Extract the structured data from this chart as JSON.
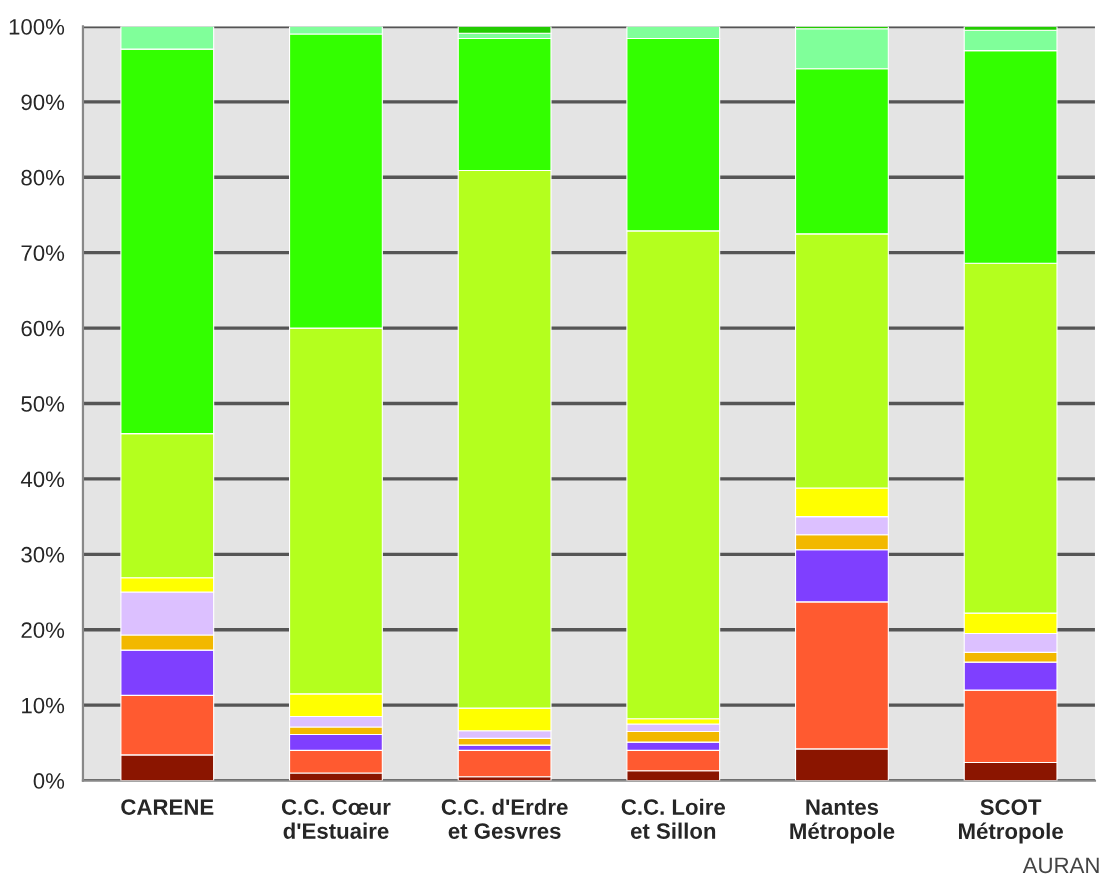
{
  "chart_data": {
    "type": "bar",
    "stacked": true,
    "categories": [
      "CARENE",
      "C.C. Cœur\nd'Estuaire",
      "C.C. d'Erdre\net Gesvres",
      "C.C. Loire\net Sillon",
      "Nantes\nMétropole",
      "SCOT\nMétropole"
    ],
    "series": [
      {
        "color": "#8b1500",
        "values": [
          3.4,
          1.0,
          0.5,
          1.3,
          4.2,
          2.4
        ]
      },
      {
        "color": "#ff5a30",
        "values": [
          7.9,
          3.0,
          3.5,
          2.7,
          19.5,
          9.6
        ]
      },
      {
        "color": "#7f3fff",
        "values": [
          6.0,
          2.1,
          0.7,
          1.1,
          6.9,
          3.7
        ]
      },
      {
        "color": "#f2b800",
        "values": [
          2.0,
          1.0,
          0.9,
          1.4,
          2.0,
          1.3
        ]
      },
      {
        "color": "#dcc0ff",
        "values": [
          5.7,
          1.4,
          1.0,
          1.0,
          2.4,
          2.5
        ]
      },
      {
        "color": "#ffff00",
        "values": [
          1.9,
          3.0,
          3.0,
          0.7,
          3.8,
          2.7
        ]
      },
      {
        "color": "#b4ff1e",
        "values": [
          19.1,
          48.5,
          71.3,
          64.7,
          33.7,
          46.4
        ]
      },
      {
        "color": "#33ff00",
        "values": [
          51.0,
          39.0,
          17.5,
          25.5,
          21.9,
          28.2
        ]
      },
      {
        "color": "#80ff9a",
        "values": [
          3.0,
          1.0,
          0.7,
          1.6,
          5.3,
          2.7
        ]
      },
      {
        "color": "#22cc00",
        "values": [
          null,
          null,
          0.9,
          null,
          0.3,
          0.5
        ]
      }
    ],
    "ylim": [
      0,
      100
    ],
    "yticks": [
      {
        "value": 0,
        "label": "0%"
      },
      {
        "value": 10,
        "label": "10%"
      },
      {
        "value": 20,
        "label": "20%"
      },
      {
        "value": 30,
        "label": "30%"
      },
      {
        "value": 40,
        "label": "40%"
      },
      {
        "value": 50,
        "label": "50%"
      },
      {
        "value": 60,
        "label": "60%"
      },
      {
        "value": 70,
        "label": "70%"
      },
      {
        "value": 80,
        "label": "80%"
      },
      {
        "value": 90,
        "label": "90%"
      },
      {
        "value": 100,
        "label": "100%"
      }
    ],
    "grid": "y",
    "annotations": [
      "AURAN"
    ]
  }
}
